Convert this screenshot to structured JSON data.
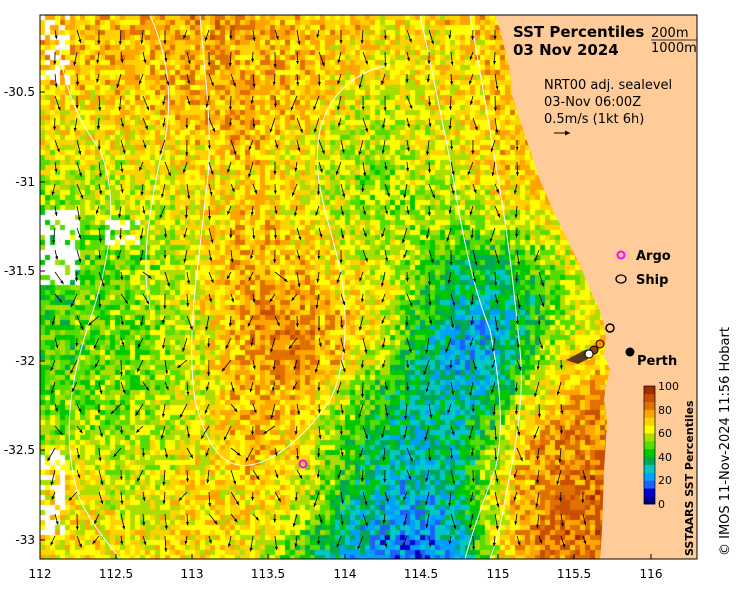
{
  "title": "SST Percentiles",
  "date": "03 Nov 2024",
  "contours": {
    "c1": "200m",
    "c2": "1000m"
  },
  "vectors": {
    "line1": "NRT00 adj. sealevel",
    "line2": "03-Nov 06:00Z",
    "line3": "0.5m/s (1kt 6h)"
  },
  "legend": {
    "argo": "Argo",
    "ship": "Ship"
  },
  "place": "Perth",
  "colorbar": {
    "title": "SSTAARS SST Percentiles",
    "ticks": [
      "0",
      "20",
      "40",
      "60",
      "80",
      "100"
    ]
  },
  "credit": "© IMOS 11-Nov-2024 11:56 Hobart",
  "axes": {
    "x_ticks": [
      "112",
      "112.5",
      "113",
      "113.5",
      "114",
      "114.5",
      "115",
      "115.5",
      "116"
    ],
    "y_ticks": [
      "-30.5",
      "-31",
      "-31.5",
      "-32",
      "-32.5",
      "-33"
    ]
  },
  "colors": {
    "land": "#ffcc99",
    "argo": "#ff00ff"
  }
}
